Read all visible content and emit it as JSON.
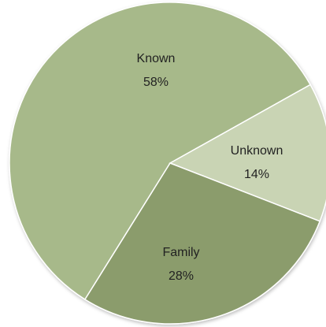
{
  "chart_data": {
    "type": "pie",
    "categories": [
      "Known",
      "Unknown",
      "Family"
    ],
    "values": [
      58,
      14,
      28
    ],
    "value_labels": [
      "58%",
      "14%",
      "28%"
    ],
    "colors": [
      "#a7b98a",
      "#c9d4b4",
      "#8b9c6c"
    ]
  }
}
